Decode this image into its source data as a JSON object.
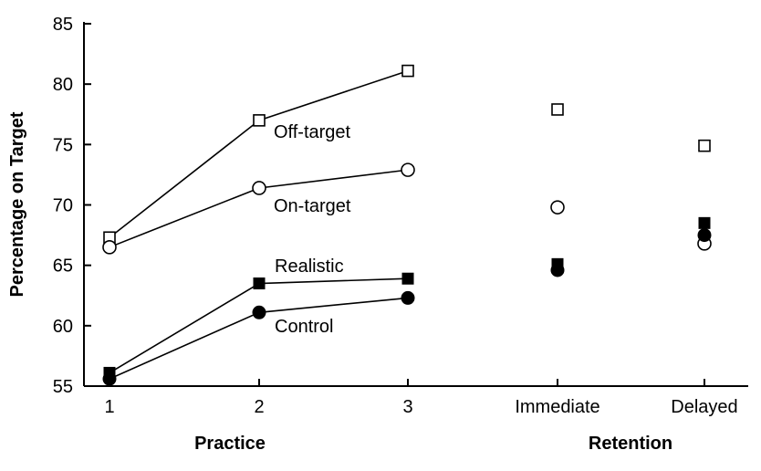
{
  "chart_data": {
    "type": "line",
    "ylabel": "Percentage on Target",
    "ylim": [
      55,
      85
    ],
    "yticks": [
      55,
      60,
      65,
      70,
      75,
      80,
      85
    ],
    "categories": [
      "1",
      "2",
      "3",
      "Immediate",
      "Delayed"
    ],
    "groups": [
      {
        "label": "Practice",
        "categories": [
          "1",
          "2",
          "3"
        ]
      },
      {
        "label": "Retention",
        "categories": [
          "Immediate",
          "Delayed"
        ]
      }
    ],
    "series": [
      {
        "name": "Off-target",
        "marker": "open-square",
        "values": [
          67.3,
          77.0,
          81.1,
          77.9,
          74.9
        ]
      },
      {
        "name": "On-target",
        "marker": "open-circle",
        "values": [
          66.5,
          71.4,
          72.9,
          69.8,
          66.8
        ]
      },
      {
        "name": "Realistic",
        "marker": "filled-square",
        "values": [
          56.1,
          63.5,
          63.9,
          65.1,
          68.5
        ]
      },
      {
        "name": "Control",
        "marker": "filled-circle",
        "values": [
          55.6,
          61.1,
          62.3,
          64.6,
          67.5
        ]
      }
    ],
    "connected_categories": [
      "1",
      "2",
      "3"
    ],
    "grid": false,
    "legend": "inline labels"
  }
}
